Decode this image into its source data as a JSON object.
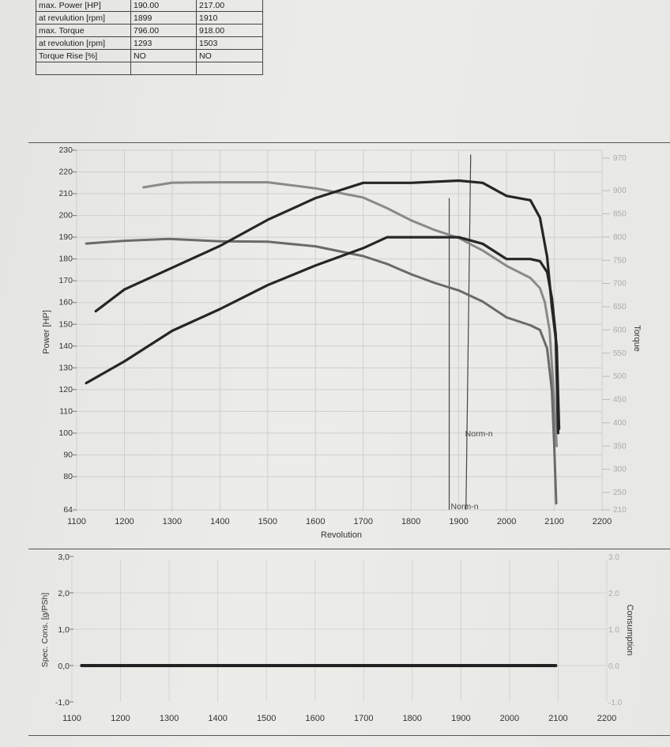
{
  "summary_table": {
    "rows": [
      [
        "max. Power [HP]",
        "190.00",
        "217.00"
      ],
      [
        "at revulution [rpm]",
        "1899",
        "1910"
      ],
      [
        "max. Torque",
        "796.00",
        "918.00"
      ],
      [
        "at revolution [rpm]",
        "1293",
        "1503"
      ],
      [
        "Torque Rise [%]",
        "NO",
        "NO"
      ],
      [
        "",
        "",
        ""
      ]
    ]
  },
  "chart_data": [
    {
      "type": "line",
      "xlabel": "Revolution",
      "ylabel": "Power [HP]",
      "y2label": "Torque",
      "xlim": [
        1100,
        2200
      ],
      "x_ticks": [
        "1100",
        "1200",
        "1300",
        "1400",
        "1500",
        "1600",
        "1700",
        "1800",
        "1900",
        "2000",
        "2100",
        "2200"
      ],
      "y_ticks": [
        "64",
        "80",
        "90",
        "100",
        "110",
        "120",
        "130",
        "140",
        "150",
        "160",
        "170",
        "180",
        "190",
        "200",
        "210",
        "220",
        "230"
      ],
      "y2_ticks": [
        "210",
        "250",
        "300",
        "350",
        "400",
        "450",
        "500",
        "550",
        "600",
        "650",
        "700",
        "750",
        "800",
        "850",
        "900",
        "970"
      ],
      "annotations": [
        {
          "text": "Norm-n",
          "x": 1910,
          "y": 100
        },
        {
          "text": "Norm-n",
          "x": 1880,
          "y": 66
        }
      ],
      "norm_lines": [
        {
          "x": 1925,
          "ymin": 64,
          "ymax": 228
        },
        {
          "x": 1880,
          "ymin": 64,
          "ymax": 208
        }
      ],
      "grid": true,
      "series": [
        {
          "axis": "torque",
          "color": "#8a8a8a",
          "width": 3,
          "points": [
            [
              1240,
              907
            ],
            [
              1300,
              917
            ],
            [
              1400,
              918
            ],
            [
              1500,
              918
            ],
            [
              1600,
              905
            ],
            [
              1700,
              885
            ],
            [
              1750,
              862
            ],
            [
              1800,
              836
            ],
            [
              1850,
              815
            ],
            [
              1900,
              798
            ],
            [
              1950,
              771
            ],
            [
              2000,
              738
            ],
            [
              2050,
              712
            ],
            [
              2070,
              690
            ],
            [
              2080,
              660
            ],
            [
              2090,
              600
            ],
            [
              2100,
              450
            ],
            [
              2105,
              350
            ]
          ]
        },
        {
          "axis": "torque",
          "color": "#6a6a6a",
          "width": 3,
          "points": [
            [
              1120,
              786
            ],
            [
              1200,
              792
            ],
            [
              1293,
              796
            ],
            [
              1400,
              791
            ],
            [
              1500,
              790
            ],
            [
              1600,
              780
            ],
            [
              1700,
              759
            ],
            [
              1750,
              742
            ],
            [
              1800,
              720
            ],
            [
              1850,
              701
            ],
            [
              1900,
              685
            ],
            [
              1950,
              661
            ],
            [
              2000,
              627
            ],
            [
              2050,
              610
            ],
            [
              2070,
              600
            ],
            [
              2085,
              560
            ],
            [
              2095,
              470
            ],
            [
              2100,
              350
            ],
            [
              2104,
              225
            ]
          ]
        },
        {
          "axis": "power",
          "color": "#262626",
          "width": 3.2,
          "points": [
            [
              1140,
              156
            ],
            [
              1200,
              166
            ],
            [
              1300,
              176
            ],
            [
              1400,
              186
            ],
            [
              1500,
              198
            ],
            [
              1600,
              208
            ],
            [
              1700,
              215
            ],
            [
              1800,
              215
            ],
            [
              1900,
              216
            ],
            [
              1950,
              215
            ],
            [
              2000,
              209
            ],
            [
              2050,
              207
            ],
            [
              2070,
              199
            ],
            [
              2085,
              181
            ],
            [
              2095,
              158
            ],
            [
              2105,
              140
            ],
            [
              2110,
              102
            ]
          ]
        },
        {
          "axis": "power",
          "color": "#262626",
          "width": 3.2,
          "points": [
            [
              1120,
              123
            ],
            [
              1200,
              133
            ],
            [
              1300,
              147
            ],
            [
              1400,
              157
            ],
            [
              1500,
              168
            ],
            [
              1600,
              177
            ],
            [
              1700,
              185
            ],
            [
              1750,
              190
            ],
            [
              1800,
              190
            ],
            [
              1900,
              190
            ],
            [
              1950,
              187
            ],
            [
              2000,
              180
            ],
            [
              2050,
              180
            ],
            [
              2070,
              179
            ],
            [
              2085,
              174
            ],
            [
              2095,
              162
            ],
            [
              2103,
              145
            ],
            [
              2108,
              100
            ]
          ]
        }
      ]
    },
    {
      "type": "line",
      "ylabel": "Spec. Cons. [g/PSh]",
      "y2label": "Consumption",
      "xlim": [
        1100,
        2200
      ],
      "ylim": [
        -1.0,
        3.0
      ],
      "x_ticks": [
        "1100",
        "1200",
        "1300",
        "1400",
        "1500",
        "1600",
        "1700",
        "1800",
        "1900",
        "2000",
        "2100",
        "2200"
      ],
      "y_ticks": [
        "-1,0",
        "0,0",
        "1,0",
        "2,0",
        "3,0"
      ],
      "y2_ticks": [
        "-1.0",
        "0.0",
        "1.0",
        "2.0",
        "3.0"
      ],
      "grid": true,
      "series": [
        {
          "color": "#222222",
          "width": 4,
          "points": [
            [
              1120,
              0.0
            ],
            [
              2095,
              0.0
            ]
          ]
        }
      ]
    }
  ]
}
